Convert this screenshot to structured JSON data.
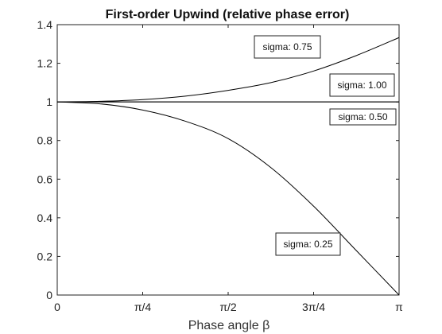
{
  "chart_data": {
    "type": "line",
    "title": "First-order Upwind (relative phase error)",
    "xlabel": "Phase angle β",
    "ylabel": "",
    "xlim": [
      0,
      3.14159
    ],
    "ylim": [
      0,
      1.4
    ],
    "x_ticks": [
      {
        "value": 0,
        "label": "0"
      },
      {
        "value": 0.7854,
        "label": "π/4"
      },
      {
        "value": 1.5708,
        "label": "π/2"
      },
      {
        "value": 2.3562,
        "label": "3π/4"
      },
      {
        "value": 3.14159,
        "label": "π"
      }
    ],
    "y_ticks": [
      {
        "value": 0,
        "label": "0"
      },
      {
        "value": 0.2,
        "label": "0.2"
      },
      {
        "value": 0.4,
        "label": "0.4"
      },
      {
        "value": 0.6,
        "label": "0.6"
      },
      {
        "value": 0.8,
        "label": "0.8"
      },
      {
        "value": 1.0,
        "label": "1"
      },
      {
        "value": 1.2,
        "label": "1.2"
      },
      {
        "value": 1.4,
        "label": "1.4"
      }
    ],
    "grid": false,
    "series": [
      {
        "sigma": 0.75,
        "x": [
          0,
          0.3927,
          0.7854,
          1.1781,
          1.5708,
          1.9635,
          2.3562,
          2.7489,
          3.14159
        ],
        "y": [
          1.0,
          1.003,
          1.012,
          1.03,
          1.06,
          1.1,
          1.16,
          1.24,
          1.333
        ]
      },
      {
        "sigma": 1.0,
        "x": [
          0,
          3.14159
        ],
        "y": [
          1.0,
          1.0
        ]
      },
      {
        "sigma": 0.5,
        "x": [
          0,
          3.14159
        ],
        "y": [
          1.0,
          1.0
        ]
      },
      {
        "sigma": 0.25,
        "x": [
          0,
          0.3927,
          0.7854,
          1.1781,
          1.5708,
          1.9635,
          2.3562,
          2.7489,
          3.14159
        ],
        "y": [
          1.0,
          0.99,
          0.958,
          0.9,
          0.81,
          0.66,
          0.46,
          0.23,
          0.0
        ]
      }
    ],
    "annotations": [
      {
        "text": "sigma: 0.75"
      },
      {
        "text": "sigma: 1.00"
      },
      {
        "text": "sigma: 0.50"
      },
      {
        "text": "sigma: 0.25"
      }
    ]
  }
}
